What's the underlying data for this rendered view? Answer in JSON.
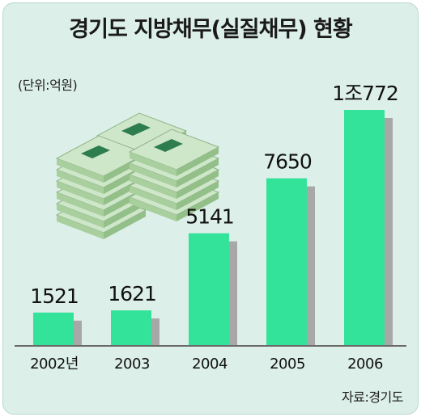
{
  "title": "경기도 지방채무(실질채무) 현황",
  "unit_label": "(단위:억원)",
  "source_label": "자료:경기도",
  "colors": {
    "bar": "#34e39a",
    "shadow": "#a8a8a8",
    "background": "#dcefe9",
    "money_band": "#2e7d4f"
  },
  "illustration": {
    "icon": "money-stack-icon"
  },
  "chart_data": {
    "type": "bar",
    "categories": [
      "2002년",
      "2003",
      "2004",
      "2005",
      "2006"
    ],
    "values": [
      1521,
      1621,
      5141,
      7650,
      10772
    ],
    "data_labels": [
      "1521",
      "1621",
      "5141",
      "7650",
      "1조772"
    ],
    "title": "경기도 지방채무(실질채무) 현황",
    "ylabel": "",
    "xlabel": "",
    "grid": false,
    "legend": "none"
  }
}
